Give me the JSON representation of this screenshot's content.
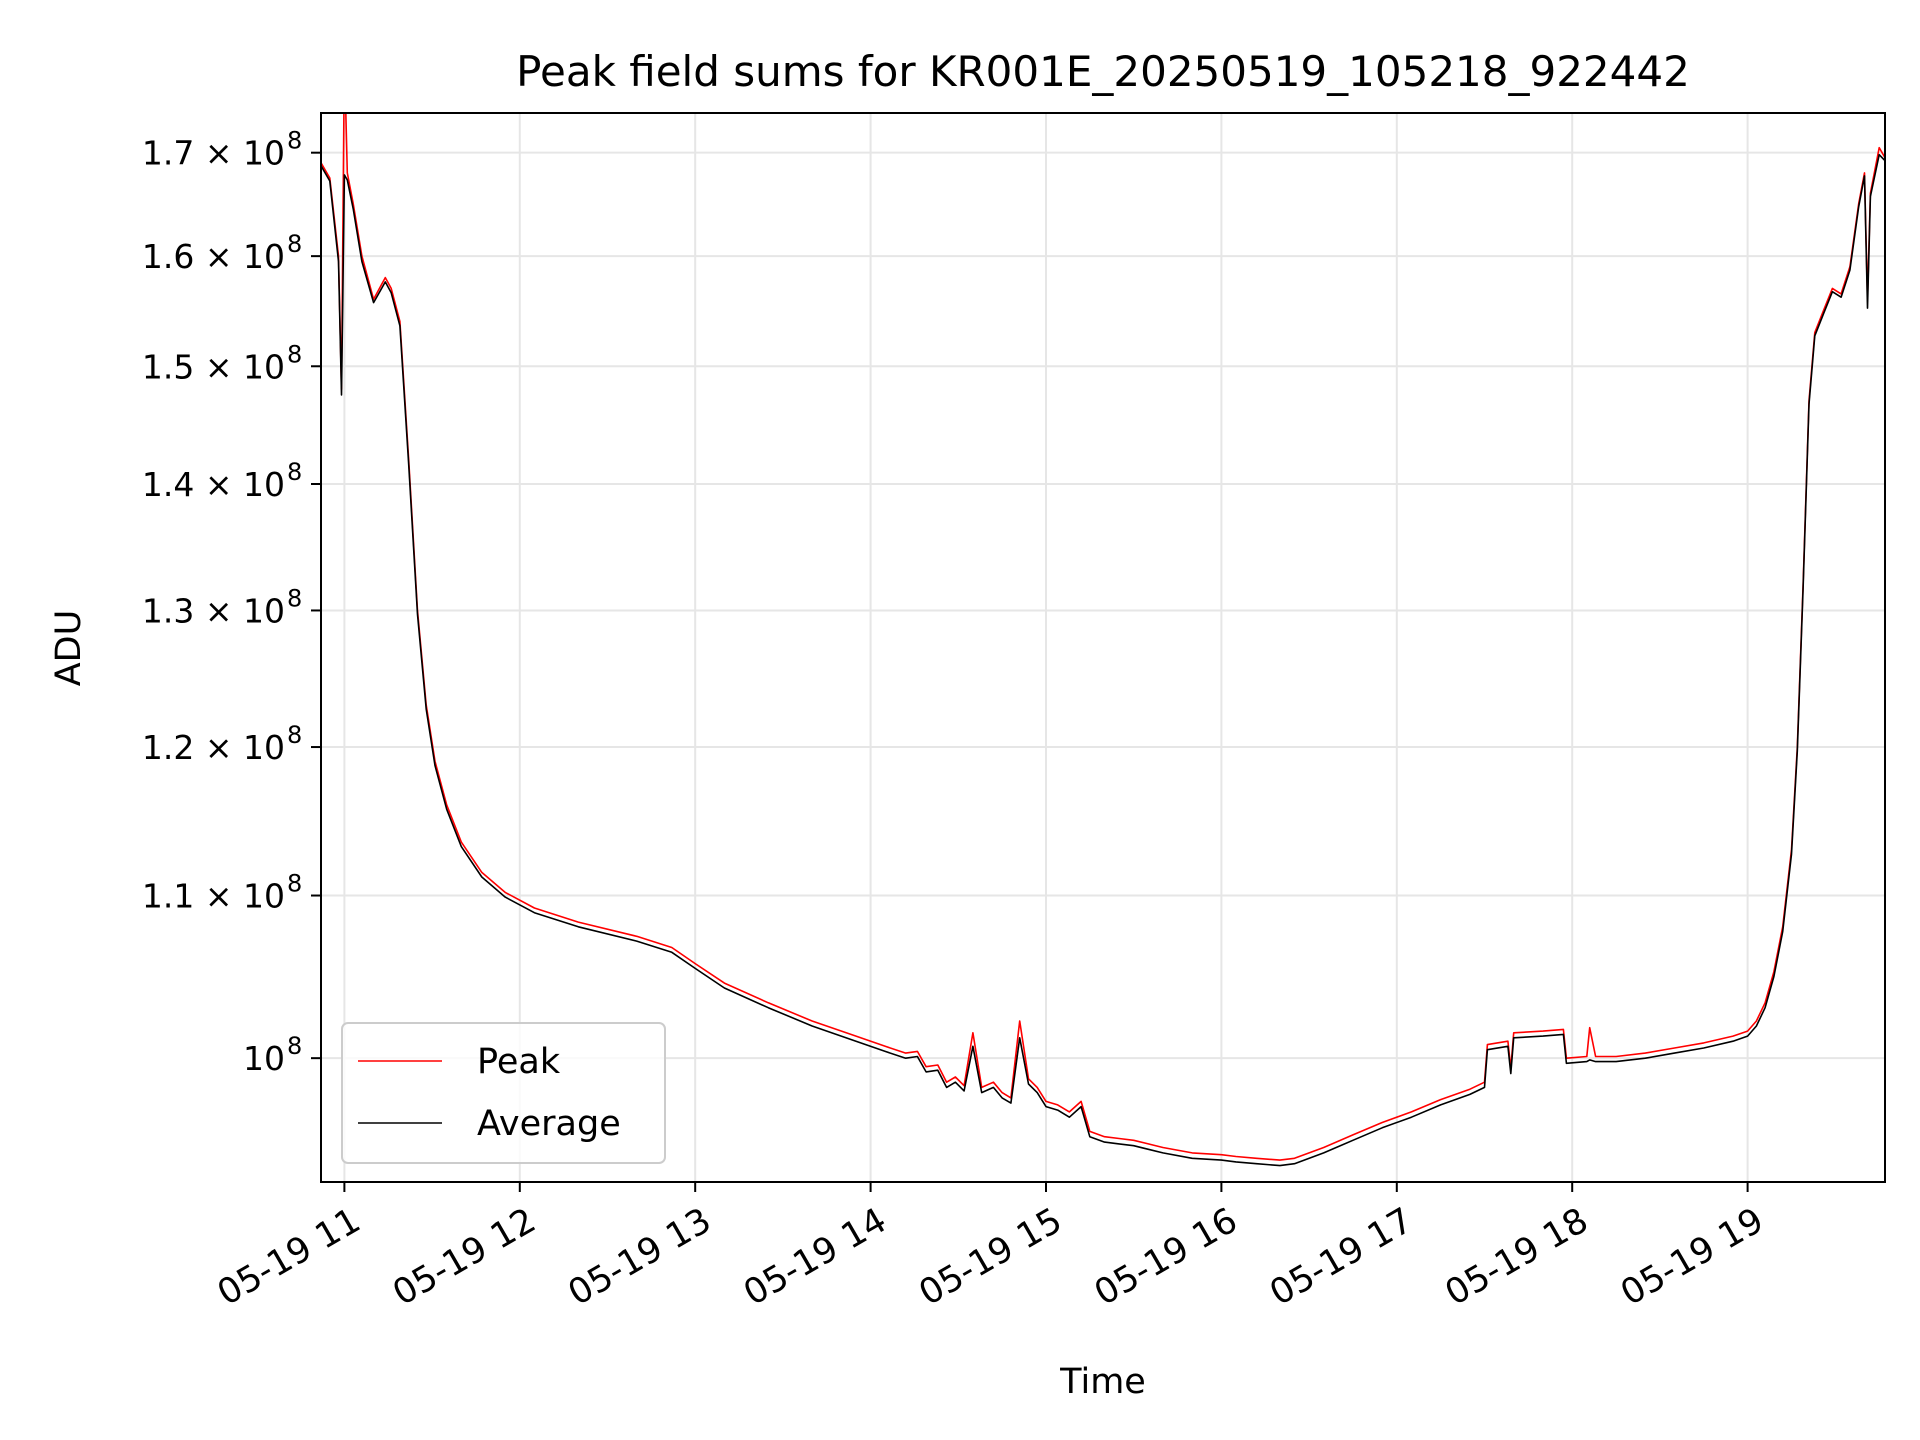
{
  "chart_data": {
    "type": "line",
    "title": "Peak field sums for KR001E_20250519_105218_922442",
    "xlabel": "Time",
    "ylabel": "ADU",
    "y_scale": "log",
    "grid": true,
    "legend_position": "lower-left",
    "x_range": [
      "2025-05-19 10:52",
      "2025-05-19 19:47"
    ],
    "ylim": [
      93000000,
      174000000
    ],
    "x_ticks": [
      {
        "value": "2025-05-19 11:00",
        "label": "05-19 11"
      },
      {
        "value": "2025-05-19 12:00",
        "label": "05-19 12"
      },
      {
        "value": "2025-05-19 13:00",
        "label": "05-19 13"
      },
      {
        "value": "2025-05-19 14:00",
        "label": "05-19 14"
      },
      {
        "value": "2025-05-19 15:00",
        "label": "05-19 15"
      },
      {
        "value": "2025-05-19 16:00",
        "label": "05-19 16"
      },
      {
        "value": "2025-05-19 17:00",
        "label": "05-19 17"
      },
      {
        "value": "2025-05-19 18:00",
        "label": "05-19 18"
      },
      {
        "value": "2025-05-19 19:00",
        "label": "05-19 19"
      }
    ],
    "y_ticks": [
      {
        "value": 100000000,
        "mant": "",
        "exp": "8"
      },
      {
        "value": 110000000,
        "mant": "1.1",
        "exp": "8"
      },
      {
        "value": 120000000,
        "mant": "1.2",
        "exp": "8"
      },
      {
        "value": 130000000,
        "mant": "1.3",
        "exp": "8"
      },
      {
        "value": 140000000,
        "mant": "1.4",
        "exp": "8"
      },
      {
        "value": 150000000,
        "mant": "1.5",
        "exp": "8"
      },
      {
        "value": 160000000,
        "mant": "1.6",
        "exp": "8"
      },
      {
        "value": 170000000,
        "mant": "1.7",
        "exp": "8"
      }
    ],
    "series": [
      {
        "name": "Peak",
        "color": "#ff0000",
        "points": [
          [
            "2025-05-19 10:52",
            169000000
          ],
          [
            "2025-05-19 10:55",
            167500000
          ],
          [
            "2025-05-19 10:58",
            160000000
          ],
          [
            "2025-05-19 10:59",
            148000000
          ],
          [
            "2025-05-19 11:00",
            180000000
          ],
          [
            "2025-05-19 11:01",
            168000000
          ],
          [
            "2025-05-19 11:03",
            165000000
          ],
          [
            "2025-05-19 11:06",
            160000000
          ],
          [
            "2025-05-19 11:10",
            156000000
          ],
          [
            "2025-05-19 11:14",
            158000000
          ],
          [
            "2025-05-19 11:16",
            157000000
          ],
          [
            "2025-05-19 11:19",
            154000000
          ],
          [
            "2025-05-19 11:22",
            142000000
          ],
          [
            "2025-05-19 11:25",
            130000000
          ],
          [
            "2025-05-19 11:28",
            123000000
          ],
          [
            "2025-05-19 11:31",
            119000000
          ],
          [
            "2025-05-19 11:35",
            116000000
          ],
          [
            "2025-05-19 11:40",
            113500000
          ],
          [
            "2025-05-19 11:47",
            111500000
          ],
          [
            "2025-05-19 11:55",
            110200000
          ],
          [
            "2025-05-19 12:05",
            109200000
          ],
          [
            "2025-05-19 12:20",
            108300000
          ],
          [
            "2025-05-19 12:40",
            107400000
          ],
          [
            "2025-05-19 12:52",
            106700000
          ],
          [
            "2025-05-19 13:00",
            105700000
          ],
          [
            "2025-05-19 13:10",
            104500000
          ],
          [
            "2025-05-19 13:25",
            103300000
          ],
          [
            "2025-05-19 13:40",
            102200000
          ],
          [
            "2025-05-19 13:55",
            101300000
          ],
          [
            "2025-05-19 14:05",
            100700000
          ],
          [
            "2025-05-19 14:12",
            100300000
          ],
          [
            "2025-05-19 14:16",
            100400000
          ],
          [
            "2025-05-19 14:19",
            99500000
          ],
          [
            "2025-05-19 14:23",
            99600000
          ],
          [
            "2025-05-19 14:26",
            98600000
          ],
          [
            "2025-05-19 14:29",
            98900000
          ],
          [
            "2025-05-19 14:32",
            98400000
          ],
          [
            "2025-05-19 14:35",
            101500000
          ],
          [
            "2025-05-19 14:38",
            98300000
          ],
          [
            "2025-05-19 14:42",
            98600000
          ],
          [
            "2025-05-19 14:45",
            98000000
          ],
          [
            "2025-05-19 14:48",
            97700000
          ],
          [
            "2025-05-19 14:51",
            102200000
          ],
          [
            "2025-05-19 14:54",
            98800000
          ],
          [
            "2025-05-19 14:57",
            98300000
          ],
          [
            "2025-05-19 15:00",
            97500000
          ],
          [
            "2025-05-19 15:04",
            97300000
          ],
          [
            "2025-05-19 15:08",
            96900000
          ],
          [
            "2025-05-19 15:12",
            97500000
          ],
          [
            "2025-05-19 15:15",
            95800000
          ],
          [
            "2025-05-19 15:20",
            95500000
          ],
          [
            "2025-05-19 15:25",
            95400000
          ],
          [
            "2025-05-19 15:30",
            95300000
          ],
          [
            "2025-05-19 15:40",
            94900000
          ],
          [
            "2025-05-19 15:50",
            94600000
          ],
          [
            "2025-05-19 16:00",
            94500000
          ],
          [
            "2025-05-19 16:05",
            94400000
          ],
          [
            "2025-05-19 16:12",
            94300000
          ],
          [
            "2025-05-19 16:20",
            94200000
          ],
          [
            "2025-05-19 16:25",
            94300000
          ],
          [
            "2025-05-19 16:35",
            94900000
          ],
          [
            "2025-05-19 16:45",
            95600000
          ],
          [
            "2025-05-19 16:55",
            96300000
          ],
          [
            "2025-05-19 17:05",
            96900000
          ],
          [
            "2025-05-19 17:15",
            97600000
          ],
          [
            "2025-05-19 17:25",
            98200000
          ],
          [
            "2025-05-19 17:30",
            98600000
          ],
          [
            "2025-05-19 17:31",
            100800000
          ],
          [
            "2025-05-19 17:38",
            101000000
          ],
          [
            "2025-05-19 17:39",
            99400000
          ],
          [
            "2025-05-19 17:40",
            101500000
          ],
          [
            "2025-05-19 17:50",
            101600000
          ],
          [
            "2025-05-19 17:57",
            101700000
          ],
          [
            "2025-05-19 17:58",
            100000000
          ],
          [
            "2025-05-19 18:05",
            100100000
          ],
          [
            "2025-05-19 18:06",
            101800000
          ],
          [
            "2025-05-19 18:08",
            100100000
          ],
          [
            "2025-05-19 18:15",
            100100000
          ],
          [
            "2025-05-19 18:25",
            100300000
          ],
          [
            "2025-05-19 18:35",
            100600000
          ],
          [
            "2025-05-19 18:45",
            100900000
          ],
          [
            "2025-05-19 18:55",
            101300000
          ],
          [
            "2025-05-19 19:00",
            101600000
          ],
          [
            "2025-05-19 19:03",
            102200000
          ],
          [
            "2025-05-19 19:06",
            103300000
          ],
          [
            "2025-05-19 19:09",
            105200000
          ],
          [
            "2025-05-19 19:12",
            108000000
          ],
          [
            "2025-05-19 19:15",
            113000000
          ],
          [
            "2025-05-19 19:17",
            120000000
          ],
          [
            "2025-05-19 19:19",
            132000000
          ],
          [
            "2025-05-19 19:21",
            147000000
          ],
          [
            "2025-05-19 19:23",
            153000000
          ],
          [
            "2025-05-19 19:26",
            155000000
          ],
          [
            "2025-05-19 19:29",
            157000000
          ],
          [
            "2025-05-19 19:32",
            156500000
          ],
          [
            "2025-05-19 19:35",
            159000000
          ],
          [
            "2025-05-19 19:38",
            165000000
          ],
          [
            "2025-05-19 19:40",
            168000000
          ],
          [
            "2025-05-19 19:41",
            156000000
          ],
          [
            "2025-05-19 19:42",
            166000000
          ],
          [
            "2025-05-19 19:45",
            170500000
          ],
          [
            "2025-05-19 19:47",
            169500000
          ]
        ]
      },
      {
        "name": "Average",
        "color": "#000000",
        "points": [
          [
            "2025-05-19 10:52",
            168700000
          ],
          [
            "2025-05-19 10:55",
            167200000
          ],
          [
            "2025-05-19 10:58",
            159500000
          ],
          [
            "2025-05-19 10:59",
            147500000
          ],
          [
            "2025-05-19 11:00",
            167800000
          ],
          [
            "2025-05-19 11:01",
            167300000
          ],
          [
            "2025-05-19 11:03",
            164500000
          ],
          [
            "2025-05-19 11:06",
            159500000
          ],
          [
            "2025-05-19 11:10",
            155700000
          ],
          [
            "2025-05-19 11:14",
            157600000
          ],
          [
            "2025-05-19 11:16",
            156600000
          ],
          [
            "2025-05-19 11:19",
            153600000
          ],
          [
            "2025-05-19 11:22",
            141600000
          ],
          [
            "2025-05-19 11:25",
            129700000
          ],
          [
            "2025-05-19 11:28",
            122700000
          ],
          [
            "2025-05-19 11:31",
            118700000
          ],
          [
            "2025-05-19 11:35",
            115700000
          ],
          [
            "2025-05-19 11:40",
            113200000
          ],
          [
            "2025-05-19 11:47",
            111200000
          ],
          [
            "2025-05-19 11:55",
            109900000
          ],
          [
            "2025-05-19 12:05",
            108900000
          ],
          [
            "2025-05-19 12:20",
            108000000
          ],
          [
            "2025-05-19 12:40",
            107100000
          ],
          [
            "2025-05-19 12:52",
            106400000
          ],
          [
            "2025-05-19 13:00",
            105400000
          ],
          [
            "2025-05-19 13:10",
            104200000
          ],
          [
            "2025-05-19 13:25",
            103000000
          ],
          [
            "2025-05-19 13:40",
            101900000
          ],
          [
            "2025-05-19 13:55",
            101000000
          ],
          [
            "2025-05-19 14:05",
            100400000
          ],
          [
            "2025-05-19 14:12",
            100000000
          ],
          [
            "2025-05-19 14:16",
            100100000
          ],
          [
            "2025-05-19 14:19",
            99200000
          ],
          [
            "2025-05-19 14:23",
            99300000
          ],
          [
            "2025-05-19 14:26",
            98300000
          ],
          [
            "2025-05-19 14:29",
            98600000
          ],
          [
            "2025-05-19 14:32",
            98100000
          ],
          [
            "2025-05-19 14:35",
            100700000
          ],
          [
            "2025-05-19 14:38",
            98000000
          ],
          [
            "2025-05-19 14:42",
            98300000
          ],
          [
            "2025-05-19 14:45",
            97700000
          ],
          [
            "2025-05-19 14:48",
            97400000
          ],
          [
            "2025-05-19 14:51",
            101200000
          ],
          [
            "2025-05-19 14:54",
            98500000
          ],
          [
            "2025-05-19 14:57",
            98000000
          ],
          [
            "2025-05-19 15:00",
            97200000
          ],
          [
            "2025-05-19 15:04",
            97000000
          ],
          [
            "2025-05-19 15:08",
            96600000
          ],
          [
            "2025-05-19 15:12",
            97200000
          ],
          [
            "2025-05-19 15:15",
            95500000
          ],
          [
            "2025-05-19 15:20",
            95200000
          ],
          [
            "2025-05-19 15:25",
            95100000
          ],
          [
            "2025-05-19 15:30",
            95000000
          ],
          [
            "2025-05-19 15:40",
            94600000
          ],
          [
            "2025-05-19 15:50",
            94300000
          ],
          [
            "2025-05-19 16:00",
            94200000
          ],
          [
            "2025-05-19 16:05",
            94100000
          ],
          [
            "2025-05-19 16:12",
            94000000
          ],
          [
            "2025-05-19 16:20",
            93900000
          ],
          [
            "2025-05-19 16:25",
            94000000
          ],
          [
            "2025-05-19 16:35",
            94600000
          ],
          [
            "2025-05-19 16:45",
            95300000
          ],
          [
            "2025-05-19 16:55",
            96000000
          ],
          [
            "2025-05-19 17:05",
            96600000
          ],
          [
            "2025-05-19 17:15",
            97300000
          ],
          [
            "2025-05-19 17:25",
            97900000
          ],
          [
            "2025-05-19 17:30",
            98300000
          ],
          [
            "2025-05-19 17:31",
            100500000
          ],
          [
            "2025-05-19 17:38",
            100700000
          ],
          [
            "2025-05-19 17:39",
            99100000
          ],
          [
            "2025-05-19 17:40",
            101200000
          ],
          [
            "2025-05-19 17:50",
            101300000
          ],
          [
            "2025-05-19 17:57",
            101400000
          ],
          [
            "2025-05-19 17:58",
            99700000
          ],
          [
            "2025-05-19 18:05",
            99800000
          ],
          [
            "2025-05-19 18:06",
            99900000
          ],
          [
            "2025-05-19 18:08",
            99800000
          ],
          [
            "2025-05-19 18:15",
            99800000
          ],
          [
            "2025-05-19 18:25",
            100000000
          ],
          [
            "2025-05-19 18:35",
            100300000
          ],
          [
            "2025-05-19 18:45",
            100600000
          ],
          [
            "2025-05-19 18:55",
            101000000
          ],
          [
            "2025-05-19 19:00",
            101300000
          ],
          [
            "2025-05-19 19:03",
            101900000
          ],
          [
            "2025-05-19 19:06",
            103000000
          ],
          [
            "2025-05-19 19:09",
            104900000
          ],
          [
            "2025-05-19 19:12",
            107700000
          ],
          [
            "2025-05-19 19:15",
            112700000
          ],
          [
            "2025-05-19 19:17",
            119700000
          ],
          [
            "2025-05-19 19:19",
            131700000
          ],
          [
            "2025-05-19 19:21",
            146700000
          ],
          [
            "2025-05-19 19:23",
            152700000
          ],
          [
            "2025-05-19 19:26",
            154700000
          ],
          [
            "2025-05-19 19:29",
            156700000
          ],
          [
            "2025-05-19 19:32",
            156200000
          ],
          [
            "2025-05-19 19:35",
            158700000
          ],
          [
            "2025-05-19 19:38",
            164700000
          ],
          [
            "2025-05-19 19:40",
            167700000
          ],
          [
            "2025-05-19 19:41",
            155200000
          ],
          [
            "2025-05-19 19:42",
            165700000
          ],
          [
            "2025-05-19 19:45",
            169800000
          ],
          [
            "2025-05-19 19:47",
            169200000
          ]
        ]
      }
    ]
  }
}
